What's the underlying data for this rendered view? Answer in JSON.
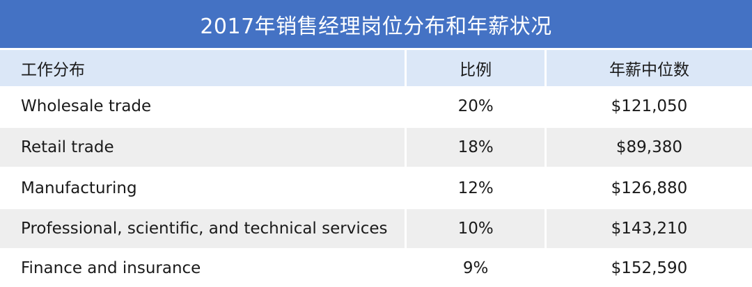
{
  "title": "2017年销售经理岗位分布和年薪状况",
  "headers": [
    "工作分布",
    "比例",
    "年薪中位数"
  ],
  "rows": [
    [
      "Wholesale trade",
      "20%",
      "$121,050"
    ],
    [
      "Retail trade",
      "18%",
      "$89,380"
    ],
    [
      "Manufacturing",
      "12%",
      "$126,880"
    ],
    [
      "Professional, scientific, and technical services",
      "10%",
      "$143,210"
    ],
    [
      "Finance and insurance",
      "9%",
      "$152,590"
    ]
  ],
  "colors": {
    "title_bg": "#4472c4",
    "header_bg": "#dbe7f7",
    "stripe_bg": "#eeeeee"
  }
}
